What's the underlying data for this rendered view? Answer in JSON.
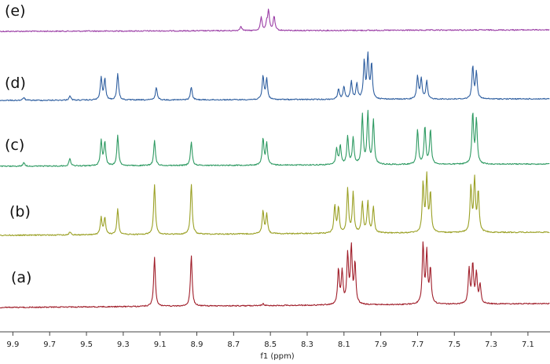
{
  "chart_data": {
    "type": "line",
    "xlabel": "f1 (ppm)",
    "xlim": [
      9.97,
      6.98
    ],
    "x_reversed": true,
    "ticks": [
      9.9,
      9.7,
      9.5,
      9.3,
      9.1,
      8.9,
      8.7,
      8.5,
      8.3,
      8.1,
      7.9,
      7.7,
      7.5,
      7.3,
      7.1
    ],
    "tick_labels": [
      "9.9",
      "9.7",
      "9.5",
      "9.3",
      "9.1",
      "8.9",
      "8.7",
      "8.5",
      "8.3",
      "8.1",
      "7.9",
      "7.7",
      "7.5",
      "7.3",
      "7.1"
    ],
    "series": [
      {
        "label": "(e)",
        "color": "#9b3ea6",
        "peaks": [
          [
            8.66,
            0.1
          ],
          [
            8.55,
            0.28
          ],
          [
            8.51,
            0.4
          ],
          [
            8.48,
            0.3
          ],
          [
            8.52,
            0.15
          ]
        ]
      },
      {
        "label": "(d)",
        "color": "#2f5fa0",
        "peaks": [
          [
            9.84,
            0.05
          ],
          [
            9.59,
            0.08
          ],
          [
            9.42,
            0.38
          ],
          [
            9.4,
            0.35
          ],
          [
            9.33,
            0.45
          ],
          [
            9.12,
            0.22
          ],
          [
            8.93,
            0.22
          ],
          [
            8.54,
            0.4
          ],
          [
            8.52,
            0.35
          ],
          [
            8.13,
            0.18
          ],
          [
            8.1,
            0.22
          ],
          [
            8.06,
            0.3
          ],
          [
            8.03,
            0.26
          ],
          [
            7.99,
            0.62
          ],
          [
            7.97,
            0.72
          ],
          [
            7.95,
            0.58
          ],
          [
            7.7,
            0.38
          ],
          [
            7.68,
            0.35
          ],
          [
            7.65,
            0.3
          ],
          [
            7.4,
            0.55
          ],
          [
            7.38,
            0.45
          ]
        ]
      },
      {
        "label": "(c)",
        "color": "#2e9a62",
        "peaks": [
          [
            9.84,
            0.06
          ],
          [
            9.59,
            0.12
          ],
          [
            9.42,
            0.4
          ],
          [
            9.4,
            0.38
          ],
          [
            9.33,
            0.48
          ],
          [
            9.13,
            0.4
          ],
          [
            8.93,
            0.38
          ],
          [
            8.54,
            0.42
          ],
          [
            8.52,
            0.35
          ],
          [
            8.14,
            0.25
          ],
          [
            8.12,
            0.3
          ],
          [
            8.08,
            0.45
          ],
          [
            8.05,
            0.42
          ],
          [
            8.0,
            0.78
          ],
          [
            7.97,
            0.82
          ],
          [
            7.94,
            0.7
          ],
          [
            7.7,
            0.55
          ],
          [
            7.66,
            0.6
          ],
          [
            7.63,
            0.55
          ],
          [
            7.4,
            0.8
          ],
          [
            7.38,
            0.7
          ]
        ]
      },
      {
        "label": "(b)",
        "color": "#9aa024",
        "peaks": [
          [
            9.59,
            0.05
          ],
          [
            9.42,
            0.26
          ],
          [
            9.4,
            0.26
          ],
          [
            9.33,
            0.4
          ],
          [
            9.13,
            0.78
          ],
          [
            8.93,
            0.78
          ],
          [
            8.54,
            0.35
          ],
          [
            8.52,
            0.3
          ],
          [
            8.15,
            0.42
          ],
          [
            8.13,
            0.4
          ],
          [
            8.08,
            0.68
          ],
          [
            8.05,
            0.62
          ],
          [
            8.0,
            0.48
          ],
          [
            7.97,
            0.48
          ],
          [
            7.94,
            0.4
          ],
          [
            7.67,
            0.75
          ],
          [
            7.65,
            0.85
          ],
          [
            7.63,
            0.6
          ],
          [
            7.41,
            0.7
          ],
          [
            7.39,
            0.8
          ],
          [
            7.37,
            0.62
          ]
        ]
      },
      {
        "label": "(a)",
        "color": "#a01e2a",
        "peaks": [
          [
            9.13,
            0.78
          ],
          [
            8.93,
            0.8
          ],
          [
            8.54,
            0.03
          ],
          [
            8.13,
            0.55
          ],
          [
            8.11,
            0.52
          ],
          [
            8.08,
            0.78
          ],
          [
            8.06,
            0.9
          ],
          [
            8.04,
            0.65
          ],
          [
            7.67,
            0.95
          ],
          [
            7.65,
            0.8
          ],
          [
            7.63,
            0.55
          ],
          [
            7.42,
            0.55
          ],
          [
            7.4,
            0.62
          ],
          [
            7.38,
            0.48
          ],
          [
            7.36,
            0.3
          ]
        ]
      }
    ]
  }
}
